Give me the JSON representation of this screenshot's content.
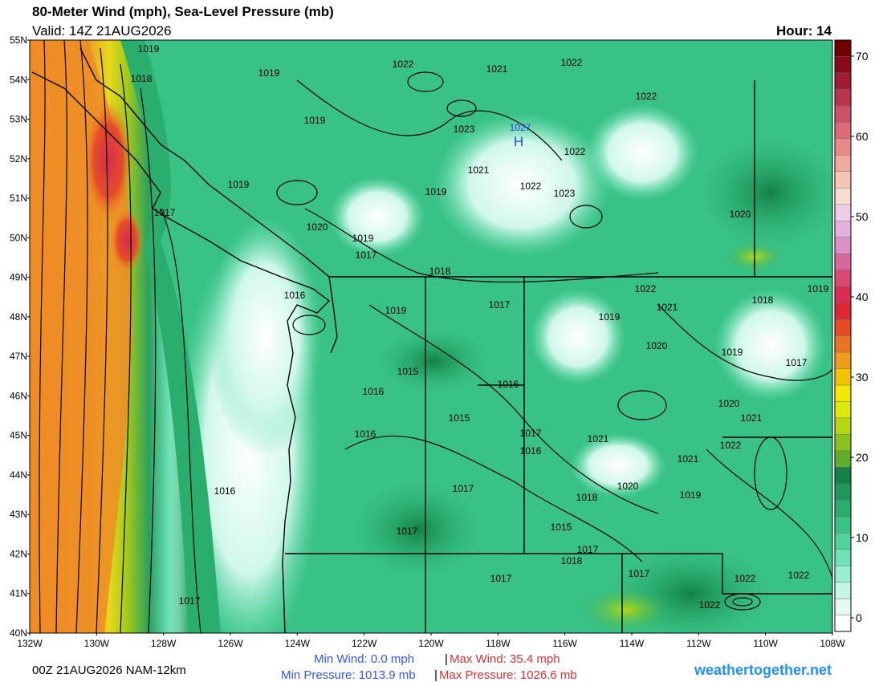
{
  "header": {
    "title": "80-Meter Wind (mph), Sea-Level Pressure (mb)",
    "valid": "Valid: 14Z 21AUG2026",
    "hour": "Hour: 14"
  },
  "map": {
    "lat_labels": [
      "55N",
      "54N",
      "53N",
      "52N",
      "51N",
      "50N",
      "49N",
      "48N",
      "47N",
      "46N",
      "45N",
      "44N",
      "43N",
      "42N",
      "41N",
      "40N"
    ],
    "lon_labels": [
      "132W",
      "130W",
      "128W",
      "126W",
      "124W",
      "122W",
      "120W",
      "118W",
      "116W",
      "114W",
      "112W",
      "110W",
      "108W"
    ],
    "high_value": "1027",
    "high_marker": "H",
    "isobar_labels": [
      "1019",
      "1019",
      "1018",
      "1022",
      "1021",
      "1022",
      "1022",
      "1019",
      "1023",
      "1022",
      "1021",
      "1019",
      "1022",
      "1023",
      "1019",
      "1017",
      "1020",
      "1019",
      "1017",
      "1020",
      "1018",
      "1022",
      "1019",
      "1016",
      "1017",
      "1021",
      "1018",
      "1019",
      "1019",
      "1020",
      "1019",
      "1017",
      "1015",
      "1016",
      "1016",
      "1020",
      "1015",
      "1021",
      "1016",
      "1017",
      "1021",
      "1022",
      "1016",
      "1021",
      "1017",
      "1020",
      "1019",
      "1016",
      "1018",
      "1017",
      "1015",
      "1017",
      "1018",
      "1017",
      "1017",
      "1022",
      "1022",
      "1017",
      "1022"
    ]
  },
  "colorbar": {
    "ylim": [
      -1.7,
      72
    ],
    "ticks": [
      0,
      10,
      20,
      30,
      40,
      50,
      60,
      70
    ],
    "colors": [
      "#ffffff",
      "#e6faf2",
      "#c2f5e2",
      "#98eece",
      "#6fe2b6",
      "#4fd49e",
      "#39c286",
      "#2aae6e",
      "#1e985a",
      "#128248",
      "#5fae2a",
      "#88c21c",
      "#b4d810",
      "#dcec08",
      "#f2e800",
      "#f2c400",
      "#f09c18",
      "#e87424",
      "#e44c28",
      "#dc2834",
      "#d82c50",
      "#d84870",
      "#d8689c",
      "#dc90c8",
      "#e4b0dc",
      "#eccce8",
      "#f6dcd2",
      "#f6c6b4",
      "#f0aaa0",
      "#e88a88",
      "#dc6c78",
      "#cc5068",
      "#b83450",
      "#a01c34",
      "#880a18",
      "#700000"
    ]
  },
  "footer": {
    "run": "00Z 21AUG2026 NAM-12km",
    "min_wind": "Min Wind:  0.0 mph",
    "max_wind": "Max Wind:  35.4 mph",
    "min_pressure": "Min Pressure: 1013.9 mb",
    "max_pressure": "Max Pressure: 1026.6 mb",
    "separator": "|",
    "site": "weathertogether.net"
  }
}
